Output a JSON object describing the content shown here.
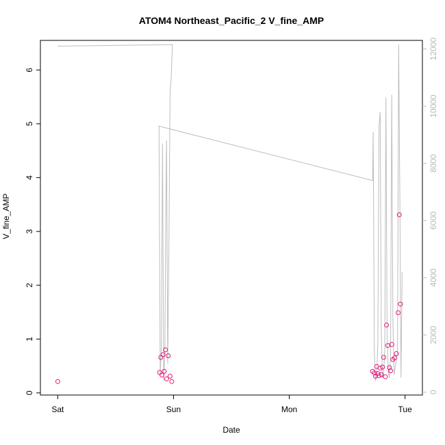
{
  "chart_data": {
    "type": "scatter",
    "title": "ATOM4 Northeast_Pacific_2 V_fine_AMP",
    "xlabel": "Date",
    "ylabel": "V_fine_AMP",
    "x_tick_labels": [
      "Sat",
      "Sun",
      "Mon",
      "Tue"
    ],
    "x_tick_values": [
      0,
      1,
      2,
      3
    ],
    "xlim": [
      -0.15,
      3.15
    ],
    "ylim": [
      -0.04,
      6.55
    ],
    "y_ticks": [
      0,
      1,
      2,
      3,
      4,
      5,
      6
    ],
    "y2lim": [
      -100,
      12300
    ],
    "y2_ticks": [
      0,
      2000,
      4000,
      6000,
      8000,
      10000,
      12000
    ],
    "grid": false,
    "colors": {
      "points": "#e6177a",
      "line": "#bdbdbd",
      "axis": "#000000",
      "right_axis": "#b8b8b8"
    },
    "series": [
      {
        "kind": "points",
        "axis": "left",
        "x": [
          0.0,
          0.88,
          0.89,
          0.9,
          0.91,
          0.92,
          0.93,
          0.94,
          0.955,
          0.97,
          0.985,
          2.72,
          2.735,
          2.745,
          2.755,
          2.765,
          2.775,
          2.785,
          2.795,
          2.805,
          2.815,
          2.83,
          2.84,
          2.85,
          2.865,
          2.875,
          2.885,
          2.895,
          2.91,
          2.925,
          2.94,
          2.95,
          2.96
        ],
        "y": [
          0.21,
          0.38,
          0.66,
          0.33,
          0.71,
          0.4,
          0.8,
          0.26,
          0.69,
          0.31,
          0.21,
          0.4,
          0.37,
          0.31,
          0.49,
          0.36,
          0.32,
          0.46,
          0.34,
          0.48,
          0.66,
          0.3,
          1.26,
          0.88,
          0.47,
          0.41,
          0.9,
          0.62,
          0.65,
          0.73,
          1.49,
          3.31,
          1.65
        ]
      },
      {
        "kind": "line",
        "axis": "right",
        "x": [
          0.0,
          0.98,
          0.99,
          0.98,
          0.97,
          0.96,
          0.95,
          0.94,
          0.935,
          0.925,
          0.915,
          0.905,
          0.895,
          0.885,
          0.875,
          2.72,
          2.725,
          2.735,
          2.745,
          2.755,
          2.765,
          2.775,
          2.785,
          2.795,
          2.805,
          2.815,
          2.825,
          2.835,
          2.845,
          2.855,
          2.865,
          2.875,
          2.885,
          2.895,
          2.905,
          2.915,
          2.925,
          2.935,
          2.945,
          2.955,
          2.965,
          2.975
        ],
        "y": [
          12100,
          12150,
          12150,
          11000,
          10500,
          5000,
          1000,
          8800,
          7000,
          1500,
          400,
          8700,
          1600,
          600,
          9300,
          7400,
          9100,
          1500,
          400,
          600,
          1700,
          9300,
          9800,
          2000,
          500,
          700,
          1400,
          10300,
          2000,
          700,
          500,
          1300,
          10400,
          2500,
          600,
          900,
          1100,
          1400,
          12150,
          7000,
          500,
          4200
        ]
      }
    ]
  }
}
